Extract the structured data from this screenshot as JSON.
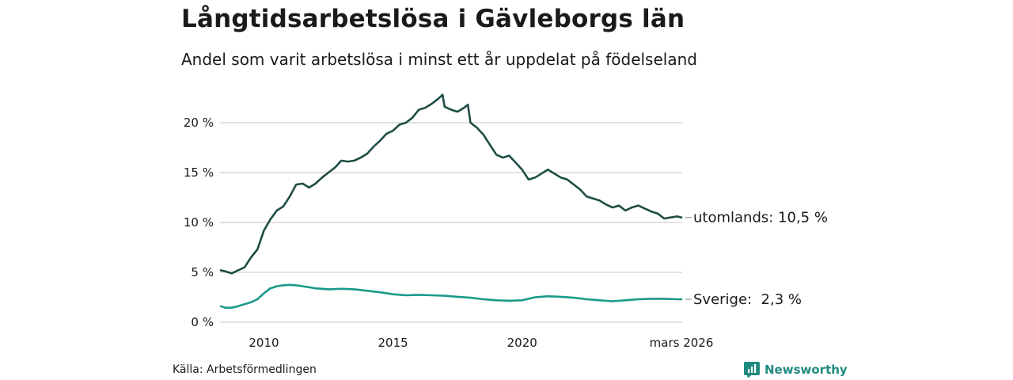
{
  "title": "Långtidsarbetslösa i Gävleborgs län",
  "subtitle": "Andel som varit arbetslösa i minst ett år uppdelat på födelseland",
  "source": "Källa: Arbetsförmedlingen",
  "brand": "Newsworthy",
  "colors": {
    "foreign": "#1e4d45",
    "sweden": "#1a9a8a",
    "grid": "#d9d9d9"
  },
  "chart_data": {
    "type": "line",
    "title": "Långtidsarbetslösa i Gävleborgs län",
    "xlim": [
      2008.3,
      2026.2
    ],
    "ylim": [
      0,
      23
    ],
    "yticks": [
      {
        "value": 0,
        "label": "0 %"
      },
      {
        "value": 5,
        "label": "5 %"
      },
      {
        "value": 10,
        "label": "10 %"
      },
      {
        "value": 15,
        "label": "15 %"
      },
      {
        "value": 20,
        "label": "20 %"
      }
    ],
    "xticks": [
      {
        "value": 2010,
        "label": "2010"
      },
      {
        "value": 2015,
        "label": "2015"
      },
      {
        "value": 2020,
        "label": "2020"
      },
      {
        "value": 2026.17,
        "label": "mars 2026"
      }
    ],
    "series": [
      {
        "name": "utomlands",
        "end_label": "utomlands: 10,5 %",
        "color": "#1e4d45",
        "x": [
          2008.33,
          2008.5,
          2008.75,
          2009.0,
          2009.25,
          2009.5,
          2009.75,
          2010.0,
          2010.25,
          2010.5,
          2010.75,
          2011.0,
          2011.25,
          2011.5,
          2011.75,
          2012.0,
          2012.25,
          2012.5,
          2012.75,
          2013.0,
          2013.25,
          2013.5,
          2013.75,
          2014.0,
          2014.25,
          2014.5,
          2014.75,
          2015.0,
          2015.25,
          2015.5,
          2015.75,
          2016.0,
          2016.25,
          2016.5,
          2016.75,
          2016.92,
          2017.0,
          2017.25,
          2017.5,
          2017.75,
          2017.9,
          2018.0,
          2018.25,
          2018.5,
          2018.75,
          2019.0,
          2019.25,
          2019.5,
          2019.75,
          2020.0,
          2020.25,
          2020.5,
          2020.75,
          2021.0,
          2021.25,
          2021.5,
          2021.75,
          2022.0,
          2022.25,
          2022.5,
          2022.75,
          2023.0,
          2023.25,
          2023.5,
          2023.75,
          2024.0,
          2024.25,
          2024.5,
          2024.75,
          2025.0,
          2025.25,
          2025.5,
          2025.75,
          2026.0,
          2026.17
        ],
        "values": [
          5.2,
          5.1,
          4.9,
          5.2,
          5.5,
          6.5,
          7.3,
          9.2,
          10.3,
          11.2,
          11.6,
          12.6,
          13.8,
          13.9,
          13.5,
          13.9,
          14.5,
          15.0,
          15.5,
          16.2,
          16.1,
          16.2,
          16.5,
          16.9,
          17.6,
          18.2,
          18.9,
          19.2,
          19.8,
          20.0,
          20.5,
          21.3,
          21.5,
          21.9,
          22.4,
          22.8,
          21.6,
          21.3,
          21.1,
          21.5,
          21.8,
          20.0,
          19.5,
          18.8,
          17.8,
          16.8,
          16.5,
          16.7,
          16.0,
          15.3,
          14.3,
          14.5,
          14.9,
          15.3,
          14.9,
          14.5,
          14.3,
          13.8,
          13.3,
          12.6,
          12.4,
          12.2,
          11.8,
          11.5,
          11.7,
          11.2,
          11.5,
          11.7,
          11.4,
          11.1,
          10.9,
          10.4,
          10.5,
          10.6,
          10.5
        ]
      },
      {
        "name": "Sverige",
        "end_label": "Sverige:  2,3 %",
        "color": "#1a9a8a",
        "x": [
          2008.33,
          2008.5,
          2008.75,
          2009.0,
          2009.25,
          2009.5,
          2009.75,
          2010.0,
          2010.25,
          2010.5,
          2010.75,
          2011.0,
          2011.25,
          2011.5,
          2011.75,
          2012.0,
          2012.5,
          2013.0,
          2013.5,
          2014.0,
          2014.5,
          2015.0,
          2015.5,
          2016.0,
          2016.5,
          2017.0,
          2017.5,
          2018.0,
          2018.5,
          2019.0,
          2019.5,
          2020.0,
          2020.5,
          2021.0,
          2021.5,
          2022.0,
          2022.5,
          2023.0,
          2023.5,
          2024.0,
          2024.5,
          2025.0,
          2025.5,
          2026.0,
          2026.17
        ],
        "values": [
          1.6,
          1.45,
          1.45,
          1.6,
          1.8,
          2.0,
          2.3,
          2.9,
          3.4,
          3.6,
          3.7,
          3.75,
          3.7,
          3.6,
          3.5,
          3.4,
          3.3,
          3.35,
          3.3,
          3.15,
          3.0,
          2.8,
          2.7,
          2.75,
          2.7,
          2.65,
          2.55,
          2.45,
          2.3,
          2.2,
          2.15,
          2.2,
          2.5,
          2.6,
          2.55,
          2.45,
          2.3,
          2.2,
          2.1,
          2.2,
          2.3,
          2.35,
          2.35,
          2.3,
          2.3
        ]
      }
    ]
  }
}
